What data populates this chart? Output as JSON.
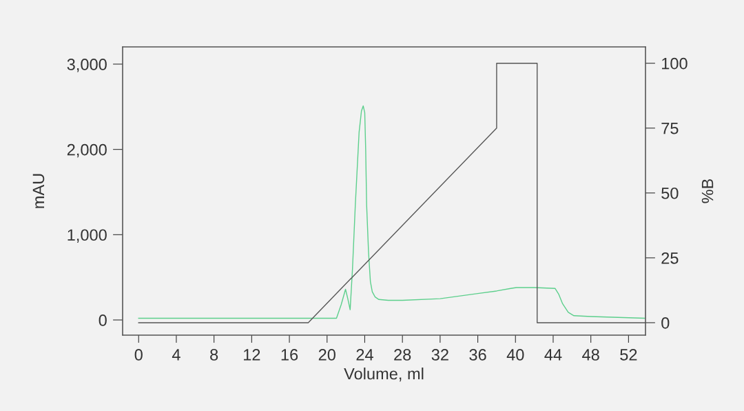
{
  "chart_data": {
    "type": "line",
    "xlabel": "Volume, ml",
    "ylabel": "mAU",
    "y2label": "%B",
    "xlim": [
      -1.7,
      53.8
    ],
    "xticks": [
      0,
      4,
      8,
      12,
      16,
      20,
      24,
      28,
      32,
      36,
      40,
      44,
      48,
      52
    ],
    "ylim": [
      -178,
      3202
    ],
    "yticks": [
      0,
      {
        "value": 1000,
        "label": "1,000"
      },
      {
        "value": 2000,
        "label": "2,000"
      },
      {
        "value": 3000,
        "label": "3,000"
      }
    ],
    "y2lim": [
      -4.8,
      106.3
    ],
    "y2ticks": [
      0,
      25,
      50,
      75,
      100
    ],
    "grid": false,
    "marker": "none",
    "line_style": "solid",
    "series": [
      {
        "color": "#5ccf8c",
        "x": [
          0,
          21,
          21.5,
          21.96,
          22.2,
          22.45,
          22.7,
          23.0,
          23.4,
          23.65,
          23.84,
          24.0,
          24.1,
          24.2,
          24.4,
          24.6,
          24.8,
          25.1,
          25.5,
          26.5,
          28,
          32,
          36,
          38,
          39.5,
          40.1,
          42,
          44.2,
          44.6,
          45.0,
          45.6,
          46.2,
          48,
          53.7
        ],
        "values": [
          20,
          20,
          180,
          360,
          250,
          120,
          600,
          1350,
          2200,
          2450,
          2510,
          2430,
          2000,
          1350,
          800,
          450,
          330,
          270,
          240,
          230,
          230,
          250,
          310,
          340,
          370,
          380,
          380,
          370,
          300,
          190,
          90,
          50,
          40,
          20
        ]
      },
      {
        "color": "#555555",
        "axis": "y2",
        "x": [
          0,
          18,
          38,
          38,
          42.3,
          42.3,
          53.8
        ],
        "values": [
          0,
          0,
          75,
          100,
          100,
          0,
          0
        ]
      }
    ]
  }
}
